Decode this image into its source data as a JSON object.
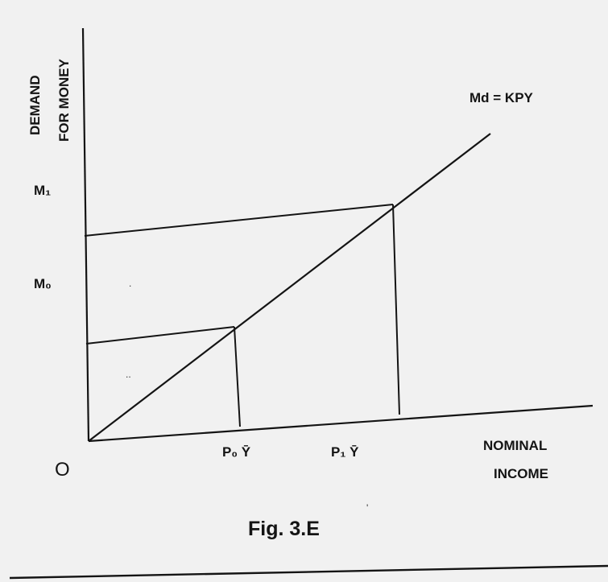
{
  "figure": {
    "y_axis_label_line1": "DEMAND",
    "y_axis_label_line2": "FOR MONEY",
    "x_axis_label_line1": "NOMINAL",
    "x_axis_label_line2": "INCOME",
    "origin": "O",
    "y_ticks": [
      "M₁",
      "M₀"
    ],
    "x_ticks": [
      "P₀ Ȳ",
      "P₁ Ȳ"
    ],
    "curve_label": "Md = KPY",
    "caption": "Fig. 3.E"
  },
  "colors": {
    "ink": "#141414",
    "paper": "#f1f1f1"
  }
}
